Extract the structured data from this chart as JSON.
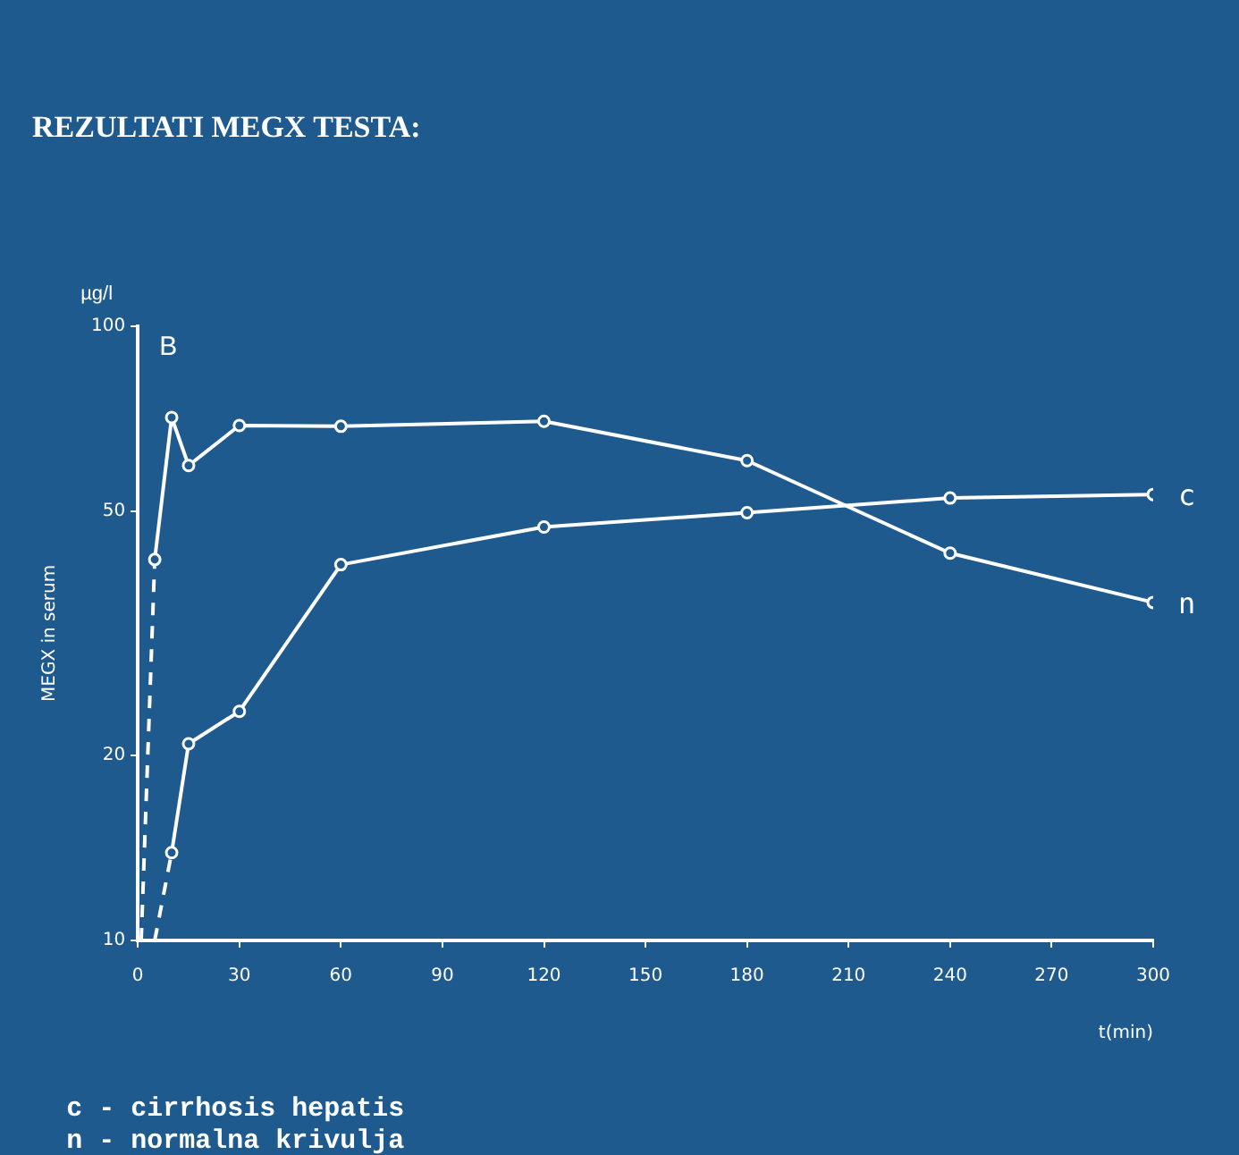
{
  "chart_data": {
    "type": "line",
    "title": "REZULTATI MEGX TESTA:",
    "xlabel": "t(min)",
    "ylabel": "MEGX in serum",
    "annotations": [
      "µg/l",
      "B",
      "c - cirrhosis hepatis",
      "n - normalna krivulja"
    ],
    "xlim": [
      0,
      300
    ],
    "xticks": [
      0,
      30,
      60,
      90,
      120,
      150,
      180,
      210,
      240,
      270,
      300
    ],
    "ylim": [
      10,
      100
    ],
    "yticks": [
      10,
      20,
      50,
      100
    ],
    "log": true,
    "grid": false,
    "legend": false,
    "marker": "circle",
    "series": [
      {
        "name": "c",
        "color": "#ffffff",
        "x": [
          10,
          15,
          30,
          60,
          120,
          180,
          240,
          300
        ],
        "values": [
          13.9,
          20.9,
          23.6,
          40.9,
          47.1,
          49.7,
          52.5,
          53.2
        ]
      },
      {
        "name": "n",
        "color": "#ffffff",
        "x": [
          5,
          10,
          15,
          30,
          60,
          120,
          180,
          240,
          300
        ],
        "values": [
          41.7,
          71,
          59.3,
          68.9,
          68.7,
          70,
          60.4,
          42.7,
          35.5
        ]
      },
      {
        "color": "#ffffff",
        "x": [
          5,
          10
        ],
        "values": [
          10,
          13.9
        ],
        "line_style": "dashed",
        "marker": "none"
      },
      {
        "color": "#ffffff",
        "x": [
          1,
          5
        ],
        "values": [
          10,
          41.7
        ],
        "line_style": "dashed",
        "marker": "none"
      }
    ]
  }
}
